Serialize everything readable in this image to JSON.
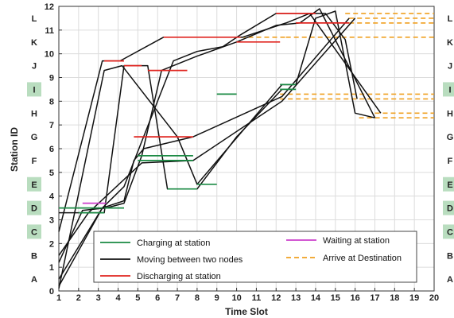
{
  "chart_data": {
    "type": "line",
    "xlabel": "Time Slot",
    "ylabel": "Station ID",
    "xlim": [
      1,
      20
    ],
    "ylim": [
      0,
      12
    ],
    "x_ticks": [
      "1",
      "2",
      "3",
      "4",
      "5",
      "6",
      "7",
      "8",
      "9",
      "10",
      "11",
      "12",
      "13",
      "14",
      "15",
      "16",
      "17",
      "18",
      "19",
      "20"
    ],
    "y_ticks": [
      "0",
      "1",
      "2",
      "3",
      "4",
      "5",
      "6",
      "7",
      "8",
      "9",
      "10",
      "11",
      "12"
    ],
    "grid": true,
    "legend_placement": "bottom-center",
    "colors": {
      "charging": "#1a8a43",
      "moving": "#111111",
      "discharging": "#e0241f",
      "waiting": "#cc3fcc",
      "arrive": "#f0a020",
      "station_highlight": "#b9ddbf"
    },
    "station_labels": [
      {
        "name": "L",
        "y": 11.5,
        "highlight": false
      },
      {
        "name": "K",
        "y": 10.5,
        "highlight": false
      },
      {
        "name": "J",
        "y": 9.5,
        "highlight": false
      },
      {
        "name": "I",
        "y": 8.5,
        "highlight": true
      },
      {
        "name": "H",
        "y": 7.5,
        "highlight": false
      },
      {
        "name": "G",
        "y": 6.5,
        "highlight": false
      },
      {
        "name": "F",
        "y": 5.5,
        "highlight": false
      },
      {
        "name": "E",
        "y": 4.5,
        "highlight": true
      },
      {
        "name": "D",
        "y": 3.5,
        "highlight": true
      },
      {
        "name": "C",
        "y": 2.5,
        "highlight": true
      },
      {
        "name": "B",
        "y": 1.5,
        "highlight": false
      },
      {
        "name": "A",
        "y": 0.5,
        "highlight": false
      }
    ],
    "legend": [
      {
        "key": "charging",
        "label": "Charging at station"
      },
      {
        "key": "moving",
        "label": "Moving between two nodes"
      },
      {
        "key": "discharging",
        "label": "Discharging at  station"
      },
      {
        "key": "waiting",
        "label": "Waiting at station"
      },
      {
        "key": "arrive",
        "label": "Arrive at Destination"
      }
    ],
    "series": [
      {
        "kind": "moving",
        "x": [
          1,
          3.3,
          4.3,
          5.5,
          6.5,
          8,
          10,
          12.3
        ],
        "y": [
          3.3,
          3.3,
          9.5,
          9.5,
          4.3,
          4.3,
          6.5,
          8.5
        ]
      },
      {
        "kind": "moving",
        "x": [
          1,
          3.3,
          4.2,
          7,
          8,
          12.3,
          13,
          14,
          15,
          16,
          17
        ],
        "y": [
          0.1,
          9.3,
          9.5,
          6.5,
          4.5,
          8.7,
          8.7,
          11.5,
          11.8,
          7.5,
          7.3
        ]
      },
      {
        "kind": "moving",
        "x": [
          1,
          3.2,
          4.1,
          6.3,
          8,
          10.3,
          12.5,
          13.7,
          17.3
        ],
        "y": [
          2.5,
          9.7,
          9.7,
          10.7,
          10.7,
          10.7,
          11.3,
          11.7,
          7.5
        ]
      },
      {
        "kind": "moving",
        "x": [
          1,
          2.2,
          3.4,
          4.3,
          5.2,
          6.2,
          8,
          10,
          12,
          13.2,
          14.2,
          17
        ],
        "y": [
          1.2,
          3.4,
          3.5,
          3.7,
          5.7,
          9.3,
          9.9,
          10.5,
          11.2,
          11.3,
          11.9,
          7.3
        ]
      },
      {
        "kind": "moving",
        "x": [
          1,
          3.2,
          4.3,
          4.8,
          5.3,
          7.8,
          12.3,
          15.7
        ],
        "y": [
          0.5,
          3.5,
          3.8,
          5.5,
          6.0,
          6.5,
          8.2,
          11.5
        ]
      },
      {
        "kind": "moving",
        "x": [
          1,
          3.2,
          4.3,
          6.8,
          8,
          9.3,
          10.2,
          12,
          13.2,
          14.5,
          15.5,
          16.1
        ],
        "y": [
          0.2,
          3.5,
          4.4,
          9.7,
          10.1,
          10.3,
          10.8,
          11.7,
          11.7,
          11.7,
          10.6,
          8.1
        ]
      },
      {
        "kind": "moving",
        "x": [
          1,
          2.5,
          5.2,
          7.8,
          12.3,
          16
        ],
        "y": [
          1.5,
          3.3,
          5.4,
          5.5,
          8.0,
          11.5
        ]
      },
      {
        "kind": "charging",
        "x": [
          1,
          3.2
        ],
        "y": [
          3.5,
          3.5
        ]
      },
      {
        "kind": "charging",
        "x": [
          2,
          3.3
        ],
        "y": [
          3.3,
          3.3
        ]
      },
      {
        "kind": "charging",
        "x": [
          3.3,
          4.3
        ],
        "y": [
          3.5,
          3.5
        ]
      },
      {
        "kind": "charging",
        "x": [
          5,
          7.8
        ],
        "y": [
          5.7,
          5.7
        ]
      },
      {
        "kind": "charging",
        "x": [
          5,
          7.8
        ],
        "y": [
          5.5,
          5.5
        ]
      },
      {
        "kind": "charging",
        "x": [
          6.5,
          8
        ],
        "y": [
          4.3,
          4.3
        ]
      },
      {
        "kind": "charging",
        "x": [
          8,
          9
        ],
        "y": [
          4.5,
          4.5
        ]
      },
      {
        "kind": "charging",
        "x": [
          9,
          10
        ],
        "y": [
          8.3,
          8.3
        ]
      },
      {
        "kind": "charging",
        "x": [
          12.2,
          13
        ],
        "y": [
          8.7,
          8.7
        ]
      },
      {
        "kind": "charging",
        "x": [
          12.2,
          13
        ],
        "y": [
          8.5,
          8.5
        ]
      },
      {
        "kind": "discharging",
        "x": [
          3.3,
          4.3
        ],
        "y": [
          9.7,
          9.7
        ]
      },
      {
        "kind": "discharging",
        "x": [
          4.3,
          5.2
        ],
        "y": [
          9.5,
          9.5
        ]
      },
      {
        "kind": "discharging",
        "x": [
          4.8,
          7.8
        ],
        "y": [
          6.5,
          6.5
        ]
      },
      {
        "kind": "discharging",
        "x": [
          5.5,
          7.5
        ],
        "y": [
          9.3,
          9.3
        ]
      },
      {
        "kind": "discharging",
        "x": [
          6.3,
          10.2
        ],
        "y": [
          10.7,
          10.7
        ]
      },
      {
        "kind": "discharging",
        "x": [
          10,
          12.2
        ],
        "y": [
          10.5,
          10.5
        ]
      },
      {
        "kind": "discharging",
        "x": [
          12,
          14
        ],
        "y": [
          11.7,
          11.7
        ]
      },
      {
        "kind": "discharging",
        "x": [
          13,
          15.7
        ],
        "y": [
          11.3,
          11.3
        ]
      },
      {
        "kind": "waiting",
        "x": [
          2.2,
          3.4
        ],
        "y": [
          3.7,
          3.7
        ]
      },
      {
        "kind": "arrive",
        "x": [
          10.2,
          12.5
        ],
        "y": [
          10.7,
          10.7
        ]
      },
      {
        "kind": "arrive",
        "x": [
          12.5,
          20
        ],
        "y": [
          10.7,
          10.7
        ]
      },
      {
        "kind": "arrive",
        "x": [
          15.7,
          20
        ],
        "y": [
          11.5,
          11.5
        ]
      },
      {
        "kind": "arrive",
        "x": [
          15.7,
          20
        ],
        "y": [
          11.3,
          11.3
        ]
      },
      {
        "kind": "arrive",
        "x": [
          15.5,
          20
        ],
        "y": [
          11.7,
          11.7
        ]
      },
      {
        "kind": "arrive",
        "x": [
          12.2,
          20
        ],
        "y": [
          8.3,
          8.3
        ]
      },
      {
        "kind": "arrive",
        "x": [
          12.2,
          20
        ],
        "y": [
          8.1,
          8.1
        ]
      },
      {
        "kind": "arrive",
        "x": [
          16.2,
          20
        ],
        "y": [
          7.3,
          7.3
        ]
      },
      {
        "kind": "arrive",
        "x": [
          17,
          20
        ],
        "y": [
          7.5,
          7.5
        ]
      }
    ]
  }
}
